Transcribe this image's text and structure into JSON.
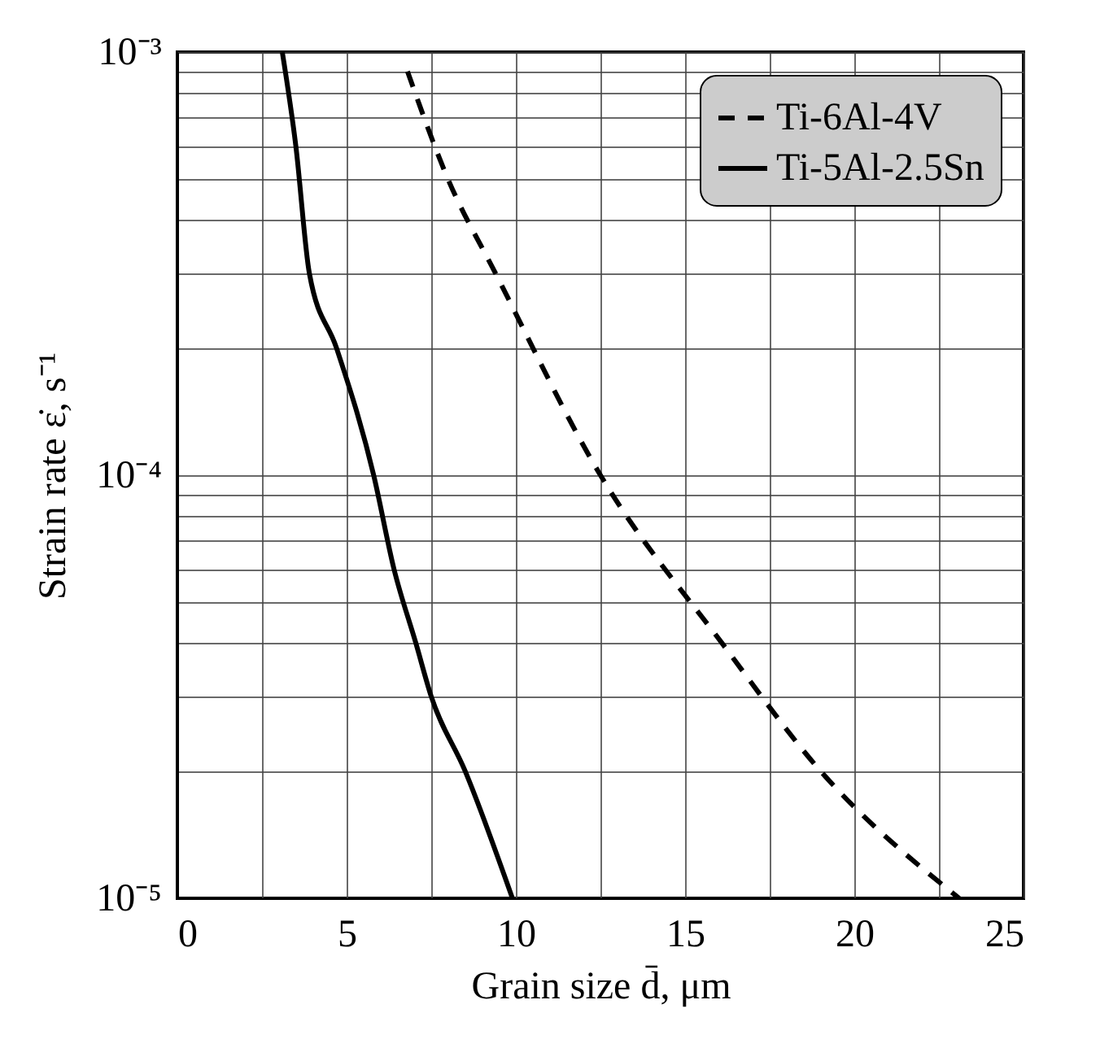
{
  "chart_data": {
    "type": "line",
    "xlabel": "Grain size d̄, μm",
    "ylabel": "Strain rate ε̇, s⁻¹",
    "log": "y",
    "grid": true,
    "legend": "top right",
    "marker": "none",
    "xlim": [
      0,
      25
    ],
    "ylim": [
      1e-05,
      0.001
    ],
    "xticks": [
      0,
      {
        "value": 2.5,
        "label": null
      },
      5,
      {
        "value": 7.5,
        "label": null
      },
      10,
      {
        "value": 12.5,
        "label": null
      },
      15,
      {
        "value": 17.5,
        "label": null
      },
      20,
      {
        "value": 22.5,
        "label": null
      },
      25
    ],
    "yticks": [
      {
        "value": 1e-05,
        "label": "10⁻⁵"
      },
      {
        "value": 2e-05,
        "label": null
      },
      {
        "value": 3e-05,
        "label": null
      },
      {
        "value": 4e-05,
        "label": null
      },
      {
        "value": 5e-05,
        "label": null
      },
      {
        "value": 6e-05,
        "label": null
      },
      {
        "value": 7e-05,
        "label": null
      },
      {
        "value": 8e-05,
        "label": null
      },
      {
        "value": 9e-05,
        "label": null
      },
      {
        "value": 0.0001,
        "label": "10⁻⁴"
      },
      {
        "value": 0.0002,
        "label": null
      },
      {
        "value": 0.0003,
        "label": null
      },
      {
        "value": 0.0004,
        "label": null
      },
      {
        "value": 0.0005,
        "label": null
      },
      {
        "value": 0.0006,
        "label": null
      },
      {
        "value": 0.0007,
        "label": null
      },
      {
        "value": 0.0008,
        "label": null
      },
      {
        "value": 0.0009,
        "label": null
      },
      {
        "value": 0.001,
        "label": "10⁻³"
      }
    ],
    "series": [
      {
        "name": "Ti-6Al-4V",
        "color": "#000000",
        "line_style": "dashed",
        "x": [
          6.8,
          8,
          9.4,
          12.5,
          16.1,
          19,
          23.1
        ],
        "values": [
          0.0009,
          0.0005,
          0.0003,
          0.0001,
          4e-05,
          2e-05,
          1e-05
        ]
      },
      {
        "name": "Ti-5Al-2.5Sn",
        "color": "#000000",
        "line_style": "solid",
        "x": [
          3.1,
          3.5,
          3.9,
          4.7,
          5.8,
          6.4,
          7.05,
          7.5,
          8.5,
          9.9
        ],
        "values": [
          0.001,
          0.0006,
          0.0003,
          0.0002,
          0.0001,
          6e-05,
          4e-05,
          3e-05,
          2e-05,
          1e-05
        ]
      }
    ]
  }
}
